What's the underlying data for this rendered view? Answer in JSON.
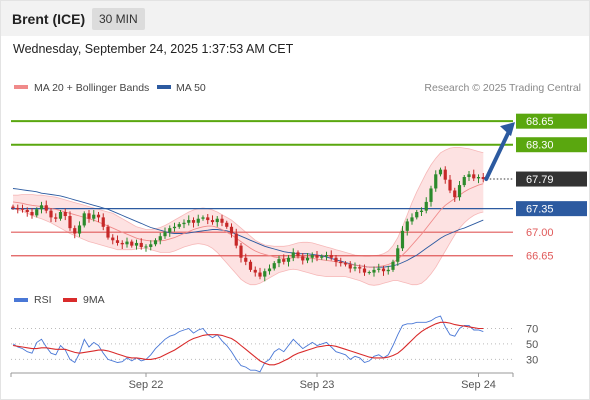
{
  "header": {
    "instrument": "Brent (ICE)",
    "timeframe": "30 MIN",
    "datetime": "Wednesday, September 24, 2025 1:37:53 AM CET"
  },
  "legend_main": [
    {
      "label": "MA 20 + Bollinger Bands",
      "color": "#f08a8a"
    },
    {
      "label": "MA 50",
      "color": "#2c5aa0"
    }
  ],
  "credit": "Research © 2025 Trading Central",
  "colors": {
    "resistance": "#5aa70f",
    "pivot": "#2c5aa0",
    "support": "#e05a5a",
    "price": "#333333",
    "bollinger_fill": "#fde2e2",
    "bullish": "#2c8a2c",
    "bearish": "#c62828",
    "rsi": "#4a78d6",
    "rsi_ma": "#d92b2b"
  },
  "chart_data": [
    {
      "type": "candlestick",
      "title": "Brent (ICE) 30 MIN",
      "x": {
        "tick_labels": [
          "Sep 22",
          "Sep 23",
          "Sep 24"
        ]
      },
      "ylim": [
        66.2,
        68.95
      ],
      "levels": [
        {
          "value": 68.65,
          "label": "68.65",
          "kind": "resistance"
        },
        {
          "value": 68.3,
          "label": "68.30",
          "kind": "resistance"
        },
        {
          "value": 67.79,
          "label": "67.79",
          "kind": "price"
        },
        {
          "value": 67.35,
          "label": "67.35",
          "kind": "pivot"
        },
        {
          "value": 67.0,
          "label": "67.00",
          "kind": "support"
        },
        {
          "value": 66.65,
          "label": "66.65",
          "kind": "support"
        }
      ],
      "forecast_arrow": {
        "from": 67.79,
        "to": 68.65
      },
      "close": [
        67.36,
        67.34,
        67.33,
        67.3,
        67.25,
        67.34,
        67.4,
        67.32,
        67.22,
        67.2,
        67.3,
        67.24,
        67.06,
        66.98,
        67.1,
        67.28,
        67.2,
        67.26,
        67.22,
        67.08,
        66.92,
        66.88,
        66.84,
        66.82,
        66.86,
        66.8,
        66.84,
        66.78,
        66.78,
        66.82,
        66.88,
        66.94,
        67.0,
        67.06,
        67.08,
        67.12,
        67.14,
        67.18,
        67.14,
        67.2,
        67.22,
        67.18,
        67.15,
        67.2,
        67.14,
        67.08,
        66.98,
        66.8,
        66.62,
        66.56,
        66.44,
        66.4,
        66.34,
        66.42,
        66.46,
        66.54,
        66.6,
        66.56,
        66.62,
        66.7,
        66.64,
        66.58,
        66.62,
        66.66,
        66.62,
        66.64,
        66.66,
        66.62,
        66.56,
        66.54,
        66.52,
        66.46,
        66.48,
        66.46,
        66.4,
        66.4,
        66.44,
        66.46,
        66.42,
        66.44,
        66.56,
        66.76,
        67.02,
        67.16,
        67.22,
        67.3,
        67.32,
        67.45,
        67.65,
        67.86,
        67.93,
        67.78,
        67.62,
        67.52,
        67.7,
        67.82,
        67.86,
        67.8,
        67.82,
        67.79
      ],
      "ma20": [
        67.45,
        67.44,
        67.43,
        67.41,
        67.4,
        67.39,
        67.38,
        67.37,
        67.35,
        67.34,
        67.32,
        67.3,
        67.28,
        67.26,
        67.24,
        67.22,
        67.2,
        67.18,
        67.15,
        67.12,
        67.09,
        67.06,
        67.03,
        67.0,
        66.97,
        66.94,
        66.91,
        66.89,
        66.88,
        66.87,
        66.87,
        66.87,
        66.88,
        66.9,
        66.92,
        66.95,
        66.98,
        67.01,
        67.04,
        67.06,
        67.08,
        67.09,
        67.09,
        67.07,
        67.04,
        67.0,
        66.96,
        66.91,
        66.86,
        66.81,
        66.76,
        66.72,
        66.69,
        66.67,
        66.65,
        66.63,
        66.62,
        66.61,
        66.61,
        66.62,
        66.62,
        66.62,
        66.62,
        66.61,
        66.6,
        66.59,
        66.58,
        66.57,
        66.56,
        66.55,
        66.54,
        66.52,
        66.51,
        66.5,
        66.49,
        66.48,
        66.48,
        66.49,
        66.5,
        66.52,
        66.55,
        66.6,
        66.66,
        66.73,
        66.81,
        66.89,
        66.97,
        67.06,
        67.15,
        67.24,
        67.33,
        67.4,
        67.45,
        67.5,
        67.55,
        67.6,
        67.64,
        67.67,
        67.7,
        67.72
      ],
      "bb_upper": [
        67.55,
        67.55,
        67.56,
        67.56,
        67.56,
        67.55,
        67.55,
        67.54,
        67.53,
        67.52,
        67.5,
        67.48,
        67.46,
        67.44,
        67.42,
        67.4,
        67.38,
        67.36,
        67.34,
        67.32,
        67.3,
        67.28,
        67.24,
        67.2,
        67.16,
        67.12,
        67.08,
        67.06,
        67.04,
        67.04,
        67.05,
        67.07,
        67.1,
        67.14,
        67.18,
        67.22,
        67.26,
        67.3,
        67.33,
        67.35,
        67.36,
        67.35,
        67.33,
        67.3,
        67.26,
        67.22,
        67.18,
        67.12,
        67.06,
        67.0,
        66.94,
        66.88,
        66.84,
        66.81,
        66.8,
        66.79,
        66.79,
        66.79,
        66.8,
        66.82,
        66.84,
        66.85,
        66.85,
        66.84,
        66.82,
        66.8,
        66.78,
        66.76,
        66.74,
        66.72,
        66.7,
        66.68,
        66.66,
        66.65,
        66.64,
        66.64,
        66.65,
        66.66,
        66.68,
        66.72,
        66.8,
        66.92,
        67.08,
        67.26,
        67.44,
        67.6,
        67.74,
        67.88,
        68.0,
        68.1,
        68.18,
        68.22,
        68.25,
        68.26,
        68.26,
        68.25,
        68.24,
        68.22,
        68.2,
        68.18
      ],
      "bb_lower": [
        67.35,
        67.33,
        67.31,
        67.28,
        67.25,
        67.22,
        67.2,
        67.17,
        67.14,
        67.1,
        67.06,
        67.02,
        66.98,
        66.95,
        66.92,
        66.89,
        66.86,
        66.84,
        66.82,
        66.8,
        66.78,
        66.76,
        66.74,
        66.74,
        66.74,
        66.74,
        66.75,
        66.76,
        66.76,
        66.74,
        66.72,
        66.7,
        66.7,
        66.7,
        66.72,
        66.75,
        66.78,
        66.8,
        66.82,
        66.83,
        66.82,
        66.8,
        66.76,
        66.7,
        66.62,
        66.54,
        66.46,
        66.38,
        66.3,
        66.25,
        66.22,
        66.22,
        66.24,
        66.28,
        66.32,
        66.36,
        66.4,
        66.42,
        66.44,
        66.45,
        66.44,
        66.42,
        66.4,
        66.38,
        66.36,
        66.35,
        66.34,
        66.34,
        66.34,
        66.34,
        66.34,
        66.32,
        66.3,
        66.28,
        66.25,
        66.22,
        66.21,
        66.22,
        66.24,
        66.26,
        66.28,
        66.28,
        66.26,
        66.24,
        66.22,
        66.22,
        66.24,
        66.3,
        66.38,
        66.48,
        66.6,
        66.72,
        66.84,
        66.96,
        67.06,
        67.14,
        67.2,
        67.25,
        67.28,
        67.3
      ],
      "ma50": [
        67.65,
        67.64,
        67.63,
        67.62,
        67.61,
        67.6,
        67.58,
        67.57,
        67.56,
        67.55,
        67.54,
        67.52,
        67.5,
        67.48,
        67.46,
        67.44,
        67.42,
        67.4,
        67.38,
        67.36,
        67.34,
        67.31,
        67.28,
        67.25,
        67.22,
        67.19,
        67.16,
        67.13,
        67.1,
        67.07,
        67.05,
        67.03,
        67.01,
        66.99,
        66.98,
        66.98,
        66.98,
        66.99,
        67.0,
        67.01,
        67.02,
        67.03,
        67.04,
        67.04,
        67.03,
        67.02,
        67.0,
        66.97,
        66.94,
        66.91,
        66.88,
        66.85,
        66.82,
        66.79,
        66.77,
        66.75,
        66.73,
        66.71,
        66.7,
        66.69,
        66.68,
        66.68,
        66.68,
        66.67,
        66.66,
        66.65,
        66.63,
        66.61,
        66.59,
        66.57,
        66.55,
        66.53,
        66.51,
        66.5,
        66.49,
        66.48,
        66.48,
        66.48,
        66.48,
        66.49,
        66.5,
        66.52,
        66.55,
        66.58,
        66.62,
        66.66,
        66.71,
        66.76,
        66.81,
        66.86,
        66.91,
        66.95,
        66.98,
        67.01,
        67.04,
        67.06,
        67.09,
        67.12,
        67.15,
        67.18
      ]
    },
    {
      "type": "line",
      "title": "RSI",
      "series": [
        {
          "name": "RSI",
          "values": [
            50,
            46,
            44,
            40,
            38,
            52,
            56,
            46,
            38,
            36,
            48,
            42,
            30,
            26,
            38,
            56,
            46,
            52,
            48,
            38,
            30,
            28,
            26,
            27,
            32,
            28,
            32,
            28,
            30,
            36,
            44,
            50,
            56,
            60,
            62,
            66,
            68,
            70,
            64,
            68,
            70,
            62,
            58,
            62,
            54,
            48,
            40,
            30,
            22,
            20,
            16,
            16,
            14,
            26,
            30,
            40,
            44,
            40,
            48,
            56,
            50,
            44,
            48,
            52,
            48,
            50,
            52,
            46,
            40,
            38,
            36,
            30,
            34,
            32,
            26,
            28,
            34,
            36,
            32,
            36,
            48,
            62,
            74,
            76,
            76,
            78,
            78,
            78,
            80,
            84,
            86,
            72,
            62,
            60,
            70,
            74,
            74,
            68,
            68,
            66
          ]
        },
        {
          "name": "9MA",
          "values": [
            48,
            47,
            46,
            45,
            44,
            44,
            45,
            45,
            44,
            43,
            43,
            43,
            41,
            39,
            38,
            39,
            40,
            41,
            42,
            42,
            41,
            39,
            37,
            35,
            33,
            32,
            32,
            31,
            30,
            30,
            31,
            33,
            36,
            39,
            42,
            46,
            50,
            54,
            57,
            59,
            61,
            62,
            62,
            62,
            61,
            59,
            57,
            53,
            48,
            43,
            38,
            33,
            28,
            25,
            23,
            23,
            25,
            28,
            31,
            35,
            38,
            40,
            42,
            44,
            46,
            47,
            48,
            48,
            47,
            45,
            43,
            41,
            39,
            37,
            35,
            33,
            32,
            32,
            32,
            33,
            35,
            38,
            43,
            49,
            55,
            61,
            66,
            70,
            73,
            76,
            78,
            78,
            77,
            75,
            74,
            73,
            72,
            71,
            70,
            70
          ]
        }
      ],
      "y_ticks": [
        70,
        50,
        30
      ],
      "ylim": [
        15,
        90
      ]
    }
  ]
}
